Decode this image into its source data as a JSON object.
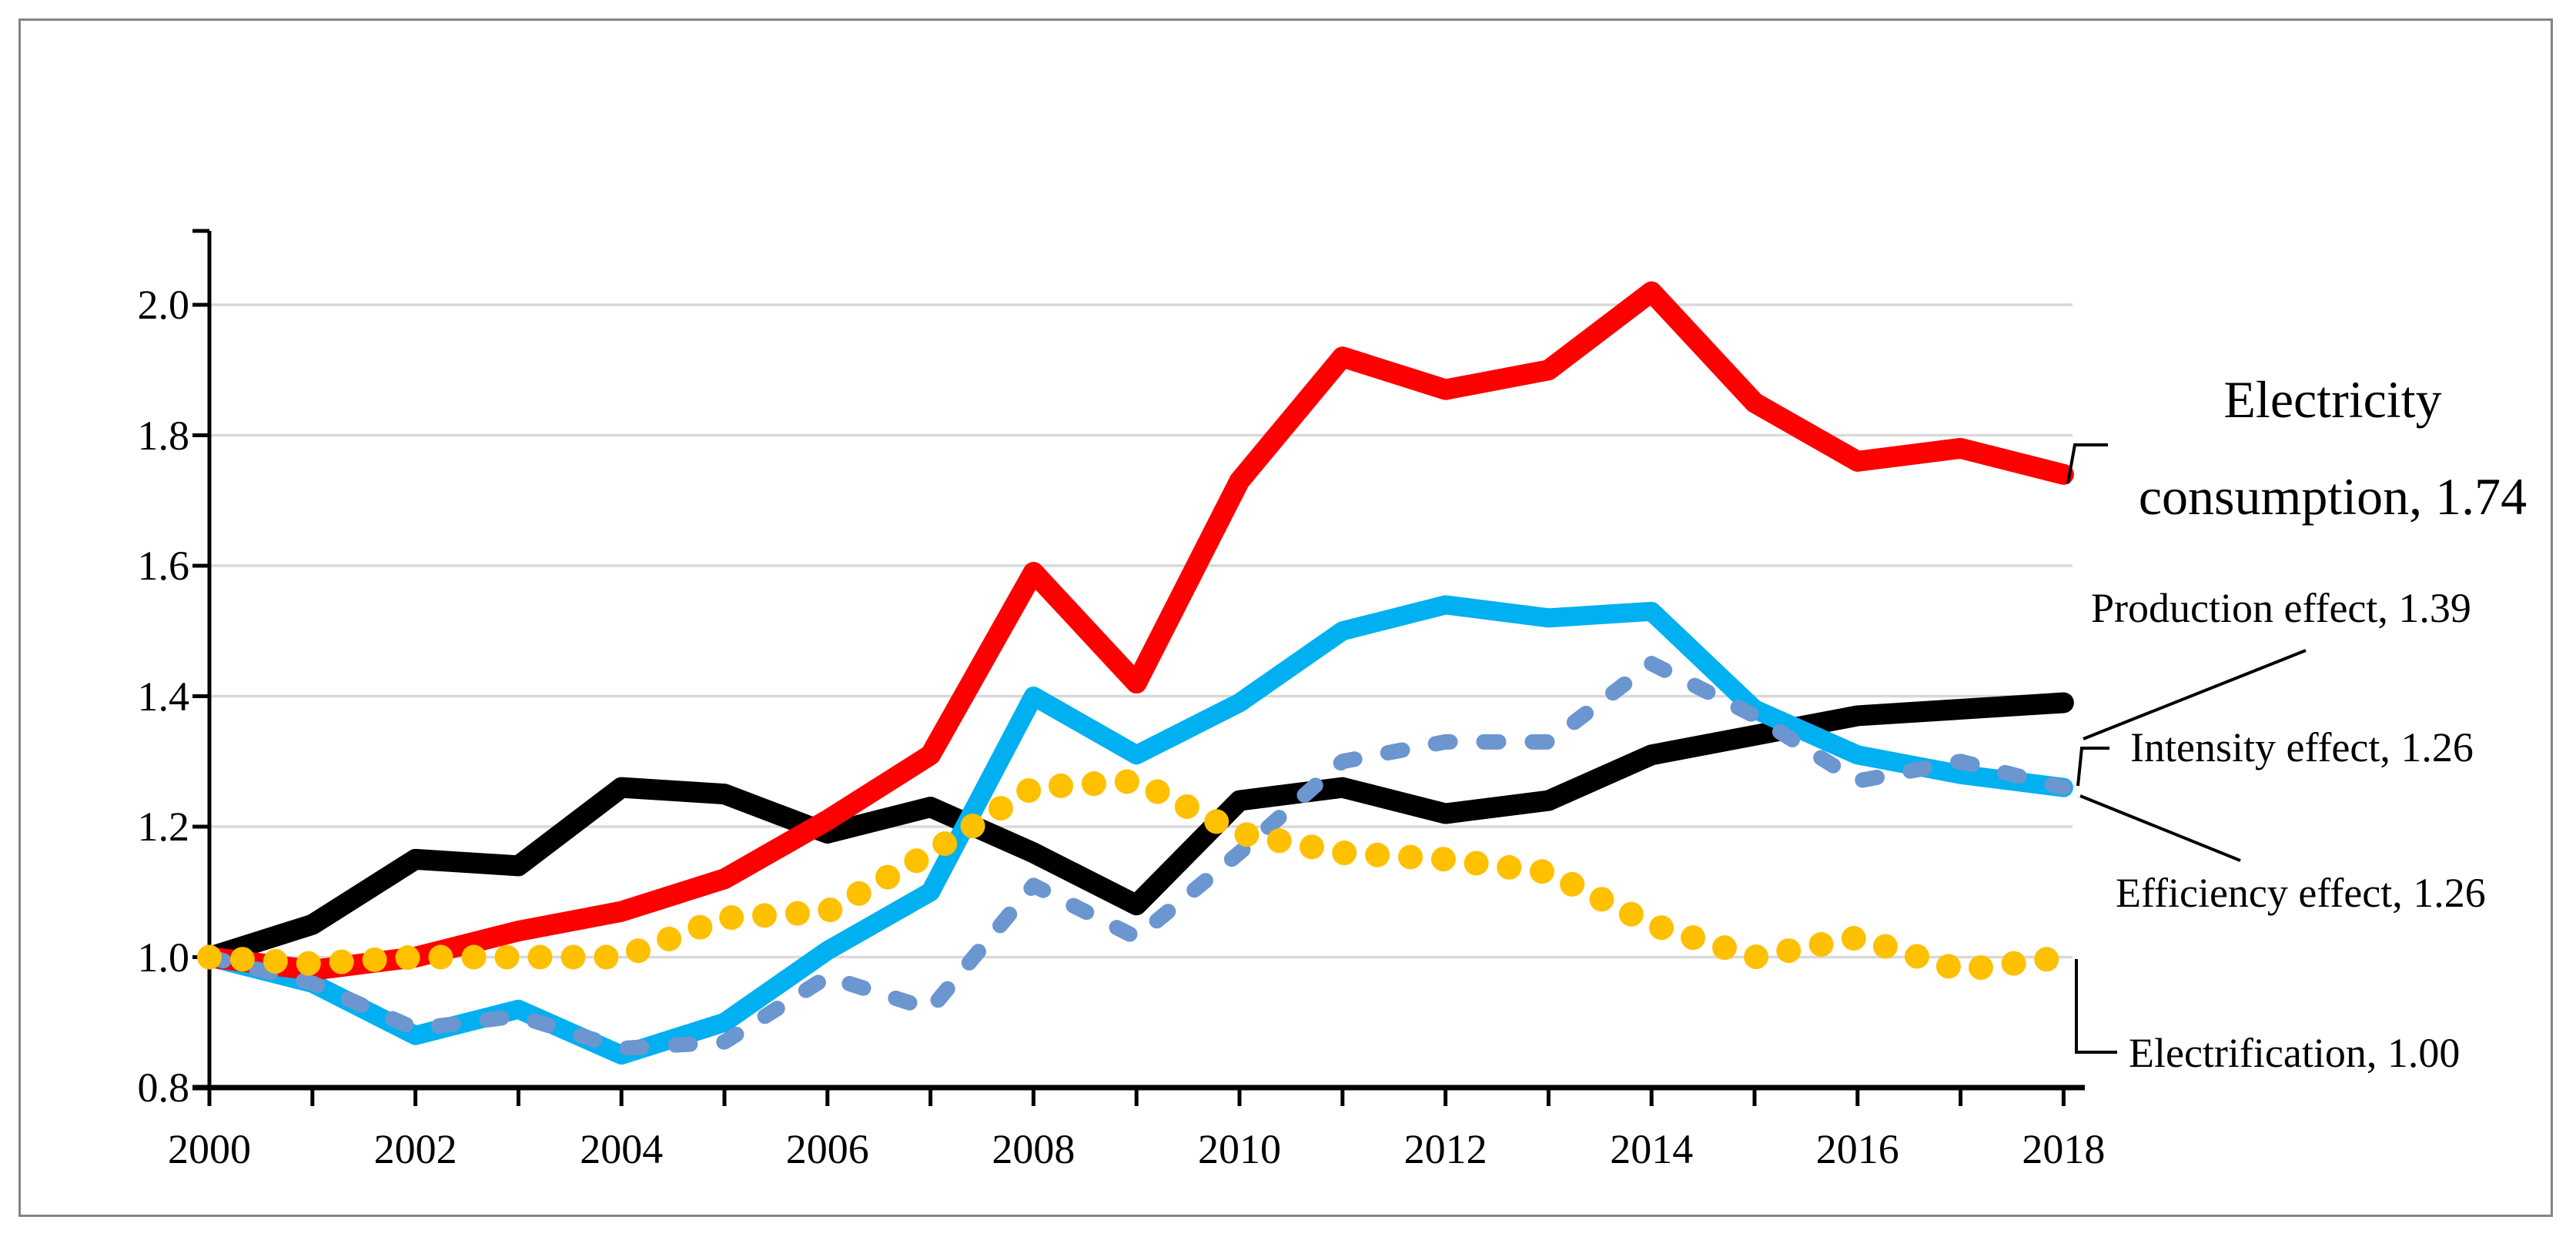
{
  "figure": {
    "background": "#FFFFFF",
    "border_color": "#848484"
  },
  "chart_data": {
    "type": "line",
    "x": [
      2000,
      2001,
      2002,
      2003,
      2004,
      2005,
      2006,
      2007,
      2008,
      2009,
      2010,
      2011,
      2012,
      2013,
      2014,
      2015,
      2016,
      2017,
      2018
    ],
    "series": [
      {
        "id": "production-effect",
        "name": "Production effect",
        "color": "#000000",
        "style": "solid",
        "width": 27,
        "values": [
          1.0,
          1.05,
          1.15,
          1.14,
          1.26,
          1.25,
          1.19,
          1.23,
          1.16,
          1.08,
          1.24,
          1.26,
          1.22,
          1.24,
          1.31,
          1.34,
          1.37,
          1.38,
          1.39
        ],
        "end_value": 1.39
      },
      {
        "id": "efficiency-effect",
        "name": "Efficiency effect",
        "color": "#00B0F0",
        "style": "solid",
        "width": 25,
        "values": [
          1.0,
          0.96,
          0.88,
          0.92,
          0.85,
          0.9,
          1.01,
          1.1,
          1.4,
          1.31,
          1.39,
          1.5,
          1.54,
          1.52,
          1.53,
          1.38,
          1.31,
          1.28,
          1.26
        ],
        "end_value": 1.26
      },
      {
        "id": "electricity-consumption",
        "name": "Electricity consumption",
        "color": "#FF0000",
        "style": "solid",
        "width": 27,
        "values": [
          1.0,
          0.98,
          1.0,
          1.04,
          1.07,
          1.12,
          1.21,
          1.31,
          1.59,
          1.42,
          1.73,
          1.92,
          1.87,
          1.9,
          2.02,
          1.85,
          1.76,
          1.78,
          1.74
        ],
        "end_value": 1.74
      },
      {
        "id": "intensity-effect",
        "name": "Intensity effect",
        "color": "#6B96D0",
        "style": "dashed",
        "width": 20,
        "values": [
          1.0,
          0.96,
          0.89,
          0.91,
          0.86,
          0.87,
          0.97,
          0.92,
          1.11,
          1.03,
          1.16,
          1.3,
          1.33,
          1.33,
          1.45,
          1.37,
          1.27,
          1.3,
          1.26
        ],
        "end_value": 1.26
      },
      {
        "id": "electrification",
        "name": "Electrification",
        "color": "#FFC000",
        "style": "dotted",
        "width": 32,
        "values": [
          1.0,
          0.99,
          1.0,
          1.0,
          1.0,
          1.06,
          1.07,
          1.16,
          1.26,
          1.27,
          1.19,
          1.16,
          1.15,
          1.13,
          1.05,
          1.0,
          1.03,
          0.98,
          1.0
        ],
        "end_value": 1.0
      }
    ],
    "title": "",
    "xlabel": "",
    "ylabel": "",
    "ylim": [
      0.8,
      2.11
    ],
    "yticks": [
      0.8,
      1.0,
      1.2,
      1.4,
      1.6,
      1.8,
      2.0
    ],
    "ytick_labels": [
      "0.8",
      "1.0",
      "1.2",
      "1.4",
      "1.6",
      "1.8",
      "2.0"
    ],
    "xtick_labels": [
      "2000",
      "2002",
      "2004",
      "2006",
      "2008",
      "2010",
      "2012",
      "2014",
      "2016",
      "2018"
    ],
    "x_minor_ticks_every_year": true,
    "grid": "horizontal",
    "gridline_color": "#D9D9D9",
    "legend": "none"
  },
  "annotations": {
    "electricity": {
      "text": "Electricity\nconsumption, 1.74"
    },
    "production": {
      "text": "Production effect, 1.39"
    },
    "intensity": {
      "text": "Intensity effect, 1.26"
    },
    "efficiency": {
      "text": "Efficiency effect, 1.26"
    },
    "electrification": {
      "text": "Electrification, 1.00"
    }
  }
}
